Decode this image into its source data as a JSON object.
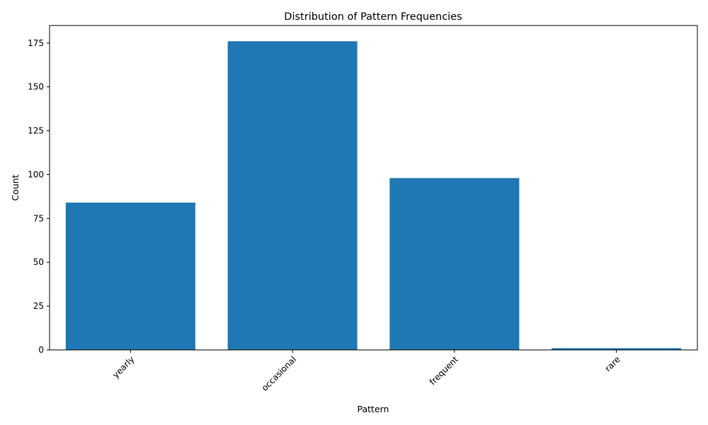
{
  "chart_data": {
    "type": "bar",
    "title": "Distribution of Pattern Frequencies",
    "xlabel": "Pattern",
    "ylabel": "Count",
    "categories": [
      "yearly",
      "occasional",
      "frequent",
      "rare"
    ],
    "values": [
      84,
      176,
      98,
      1
    ],
    "ylim": [
      0,
      185
    ],
    "yticks": [
      0,
      25,
      50,
      75,
      100,
      125,
      150,
      175
    ],
    "xtick_rotation_deg": 45,
    "grid": false,
    "legend": "none",
    "bar_color": "#1f77b4"
  }
}
